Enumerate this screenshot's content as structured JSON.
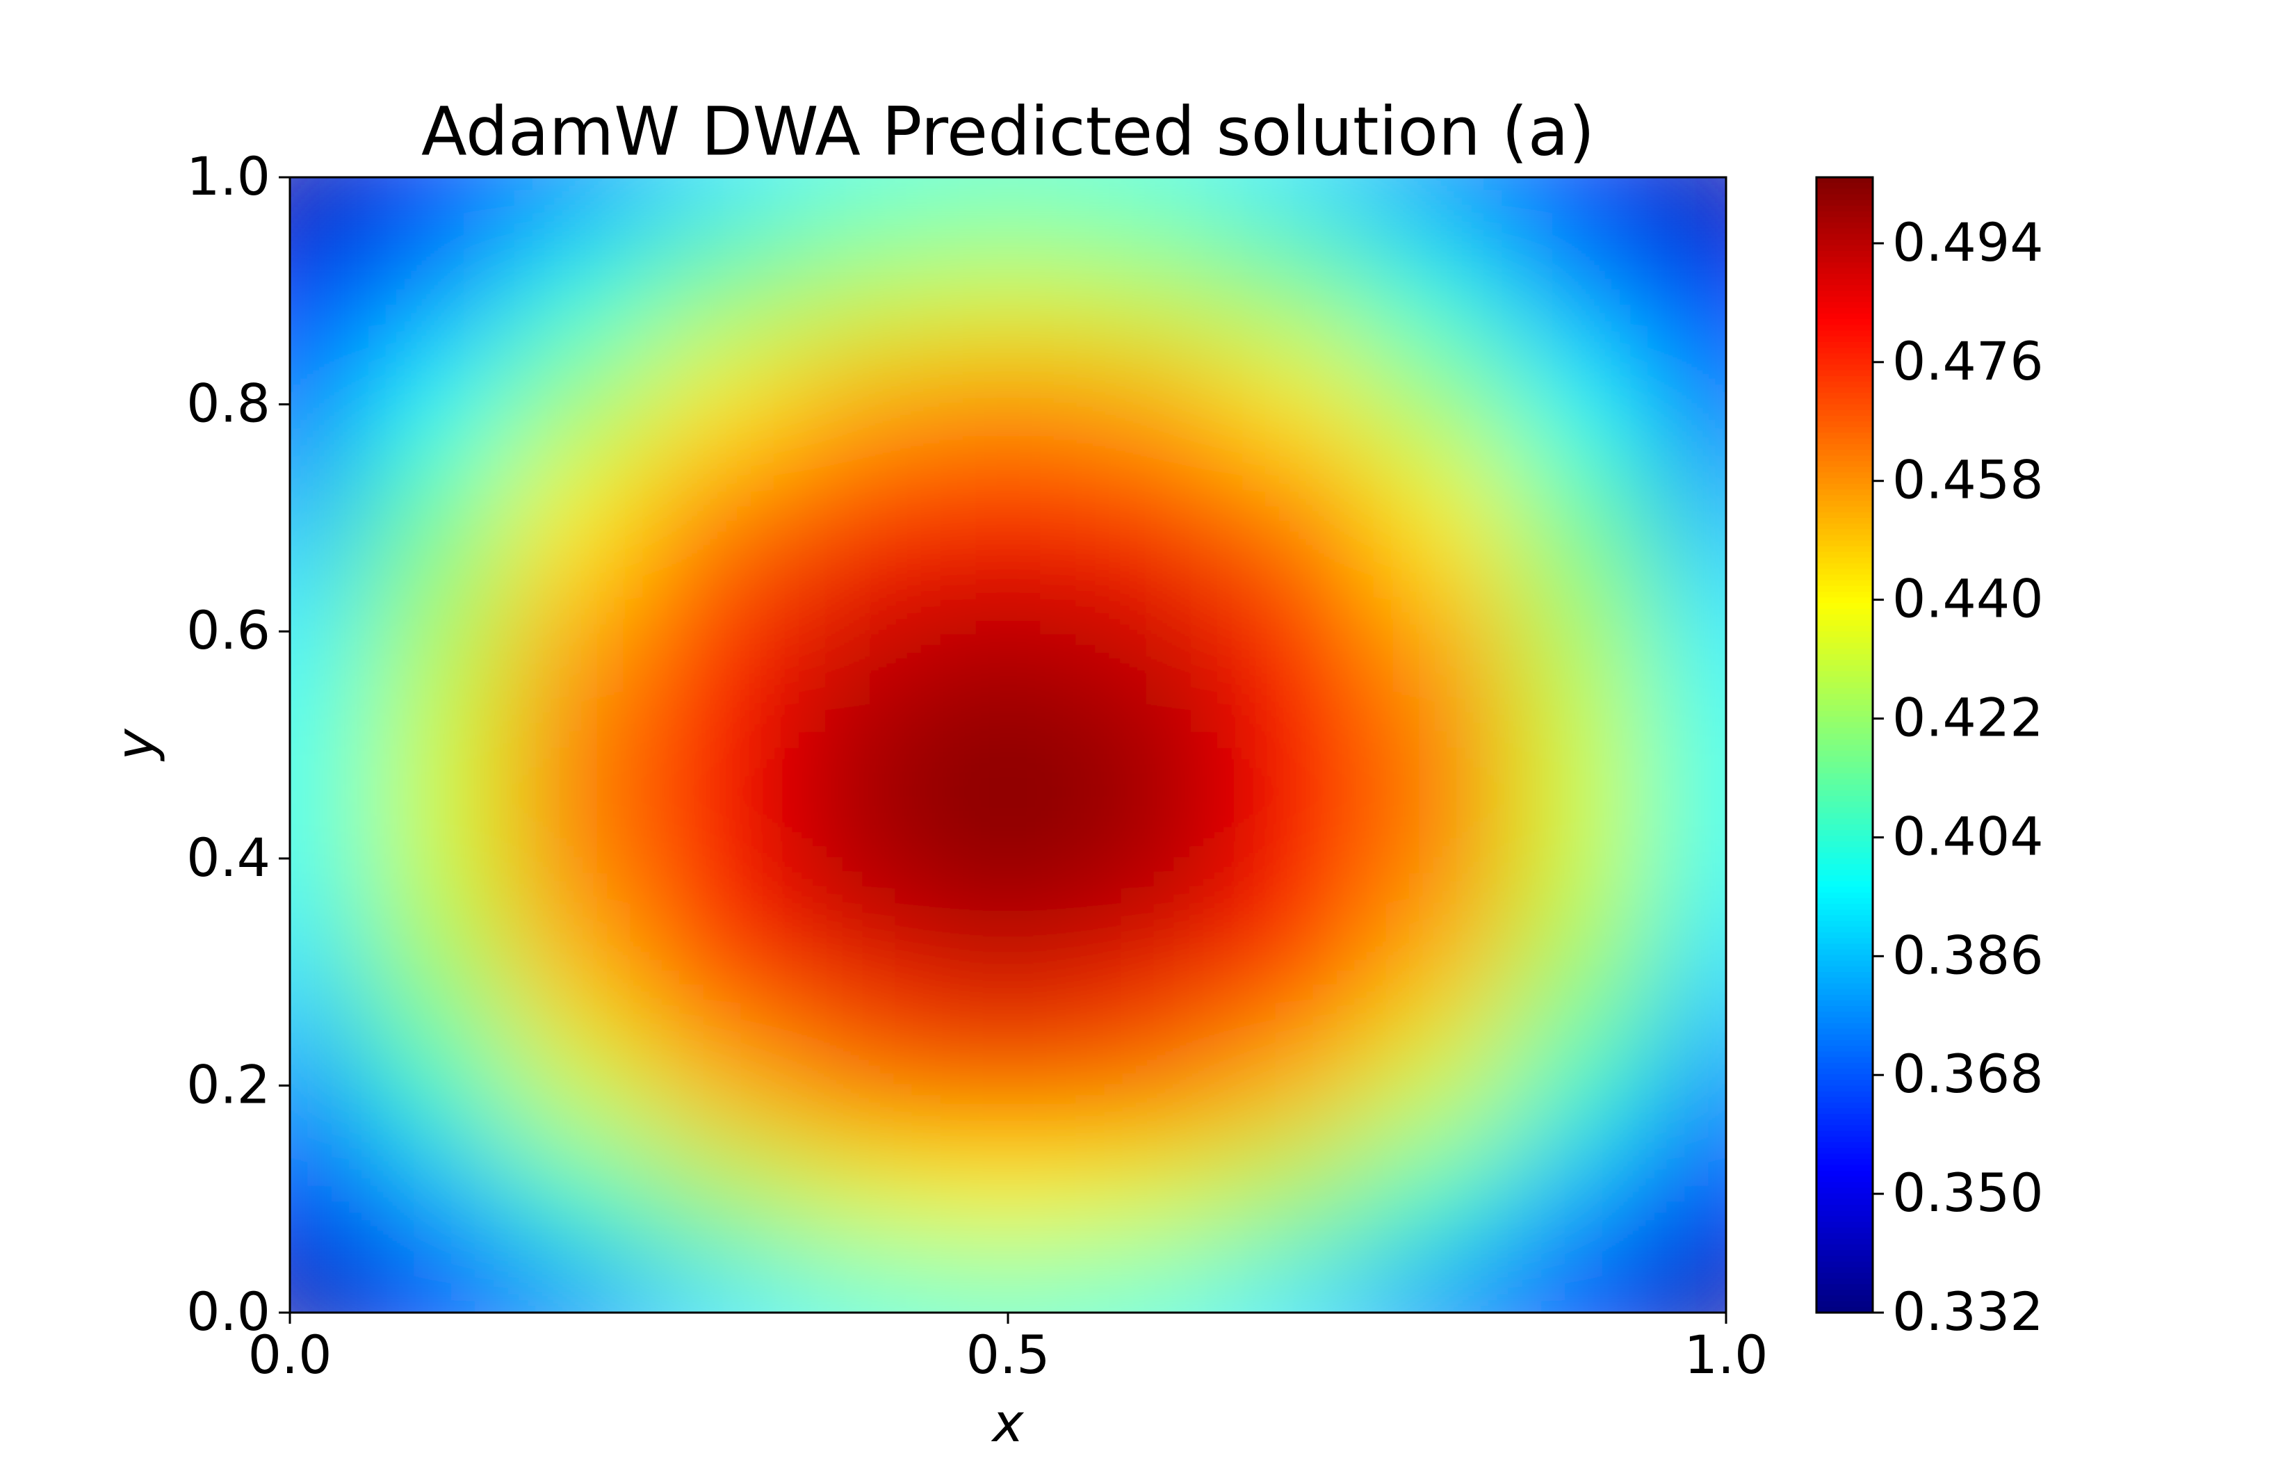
{
  "chart_data": {
    "type": "contour",
    "title": "AdamW DWA Predicted solution (a)",
    "xlabel": "x",
    "ylabel": "y",
    "colormap": "jet",
    "clim": [
      0.332,
      0.504
    ],
    "xlim": [
      0,
      1
    ],
    "ylim": [
      0,
      1
    ],
    "xticks": [
      {
        "value": 0,
        "label": "0.0"
      },
      0.5,
      {
        "value": 1,
        "label": "1.0"
      }
    ],
    "yticks": [
      {
        "value": 0,
        "label": "0.0"
      },
      0.2,
      0.4,
      0.6,
      0.8,
      {
        "value": 1,
        "label": "1.0"
      }
    ],
    "cticks": [
      0.332,
      {
        "value": 0.35,
        "label": "0.350"
      },
      0.368,
      0.386,
      0.404,
      0.422,
      {
        "value": 0.44,
        "label": "0.440"
      },
      0.458,
      0.476,
      0.494
    ],
    "x": [
      0,
      0.1,
      0.2,
      0.3,
      0.4,
      0.5,
      0.6,
      0.7,
      0.8,
      0.9,
      1
    ],
    "y": [
      0,
      0.1,
      0.2,
      0.3,
      0.4,
      0.5,
      0.6,
      0.7,
      0.8,
      0.9,
      1
    ],
    "z": [
      [
        0.335,
        0.357,
        0.376,
        0.392,
        0.402,
        0.405,
        0.402,
        0.392,
        0.376,
        0.357,
        0.335
      ],
      [
        0.357,
        0.382,
        0.405,
        0.423,
        0.435,
        0.439,
        0.435,
        0.423,
        0.405,
        0.382,
        0.357
      ],
      [
        0.377,
        0.405,
        0.431,
        0.451,
        0.464,
        0.469,
        0.464,
        0.451,
        0.431,
        0.405,
        0.377
      ],
      [
        0.391,
        0.422,
        0.45,
        0.472,
        0.486,
        0.491,
        0.486,
        0.472,
        0.45,
        0.422,
        0.391
      ],
      [
        0.399,
        0.431,
        0.46,
        0.483,
        0.497,
        0.503,
        0.497,
        0.483,
        0.46,
        0.431,
        0.399
      ],
      [
        0.399,
        0.431,
        0.461,
        0.483,
        0.498,
        0.503,
        0.498,
        0.483,
        0.461,
        0.431,
        0.399
      ],
      [
        0.394,
        0.425,
        0.453,
        0.476,
        0.49,
        0.495,
        0.49,
        0.476,
        0.453,
        0.425,
        0.394
      ],
      [
        0.384,
        0.414,
        0.441,
        0.462,
        0.475,
        0.48,
        0.475,
        0.462,
        0.441,
        0.414,
        0.384
      ],
      [
        0.37,
        0.397,
        0.422,
        0.442,
        0.454,
        0.459,
        0.454,
        0.442,
        0.422,
        0.397,
        0.37
      ],
      [
        0.353,
        0.378,
        0.4,
        0.418,
        0.429,
        0.433,
        0.429,
        0.418,
        0.4,
        0.378,
        0.353
      ],
      [
        0.335,
        0.357,
        0.376,
        0.392,
        0.402,
        0.405,
        0.402,
        0.392,
        0.376,
        0.357,
        0.335
      ]
    ]
  }
}
